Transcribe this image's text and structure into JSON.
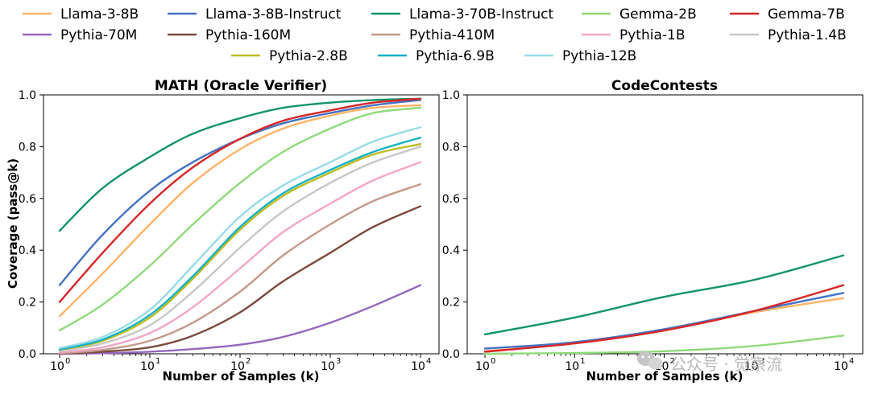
{
  "chart_data": [
    {
      "type": "line",
      "title": "MATH (Oracle Verifier)",
      "xlabel": "Number of Samples (k)",
      "ylabel": "Coverage (pass@k)",
      "xscale": "log",
      "xlim": [
        1,
        10000
      ],
      "ylim": [
        0,
        1.0
      ],
      "x": [
        1,
        3,
        10,
        30,
        100,
        300,
        1000,
        3000,
        10000
      ],
      "xtick_labels": [
        "10",
        "10",
        "10",
        "10",
        "10"
      ],
      "xtick_exponents": [
        "0",
        "1",
        "2",
        "3",
        "4"
      ],
      "ytick_labels": [
        "0.0",
        "0.2",
        "0.4",
        "0.6",
        "0.8",
        "1.0"
      ],
      "series": [
        {
          "name": "Llama-3-8B",
          "values": [
            0.145,
            0.31,
            0.5,
            0.66,
            0.79,
            0.87,
            0.92,
            0.95,
            0.96
          ]
        },
        {
          "name": "Llama-3-8B-Instruct",
          "values": [
            0.265,
            0.46,
            0.63,
            0.74,
            0.83,
            0.89,
            0.93,
            0.96,
            0.98
          ]
        },
        {
          "name": "Llama-3-70B-Instruct",
          "values": [
            0.475,
            0.64,
            0.76,
            0.85,
            0.91,
            0.95,
            0.97,
            0.98,
            0.985
          ]
        },
        {
          "name": "Gemma-2B",
          "values": [
            0.09,
            0.19,
            0.34,
            0.5,
            0.66,
            0.78,
            0.87,
            0.93,
            0.95
          ]
        },
        {
          "name": "Gemma-7B",
          "values": [
            0.2,
            0.39,
            0.58,
            0.72,
            0.83,
            0.9,
            0.94,
            0.97,
            0.985
          ]
        },
        {
          "name": "Pythia-70M",
          "values": [
            0.0,
            0.002,
            0.008,
            0.018,
            0.035,
            0.065,
            0.12,
            0.185,
            0.265
          ]
        },
        {
          "name": "Pythia-160M",
          "values": [
            0.0,
            0.008,
            0.025,
            0.07,
            0.16,
            0.28,
            0.39,
            0.49,
            0.57
          ]
        },
        {
          "name": "Pythia-410M",
          "values": [
            0.002,
            0.015,
            0.05,
            0.12,
            0.24,
            0.38,
            0.5,
            0.59,
            0.655
          ]
        },
        {
          "name": "Pythia-1B",
          "values": [
            0.005,
            0.025,
            0.08,
            0.18,
            0.33,
            0.47,
            0.58,
            0.67,
            0.74
          ]
        },
        {
          "name": "Pythia-1.4B",
          "values": [
            0.01,
            0.04,
            0.11,
            0.24,
            0.41,
            0.55,
            0.66,
            0.74,
            0.8
          ]
        },
        {
          "name": "Pythia-2.8B",
          "values": [
            0.015,
            0.05,
            0.14,
            0.29,
            0.48,
            0.61,
            0.7,
            0.77,
            0.81
          ]
        },
        {
          "name": "Pythia-6.9B",
          "values": [
            0.017,
            0.055,
            0.15,
            0.3,
            0.49,
            0.62,
            0.71,
            0.78,
            0.835
          ]
        },
        {
          "name": "Pythia-12B",
          "values": [
            0.022,
            0.065,
            0.17,
            0.34,
            0.53,
            0.65,
            0.74,
            0.82,
            0.875
          ]
        }
      ]
    },
    {
      "type": "line",
      "title": "CodeContests",
      "xlabel": "Number of Samples (k)",
      "ylabel": "",
      "xscale": "log",
      "xlim": [
        1,
        10000
      ],
      "ylim": [
        0,
        1.0
      ],
      "x": [
        1,
        10,
        100,
        1000,
        10000
      ],
      "xtick_labels": [
        "10",
        "10",
        "10",
        "10",
        "10"
      ],
      "xtick_exponents": [
        "0",
        "1",
        "2",
        "3",
        "4"
      ],
      "ytick_labels": [
        "0.0",
        "0.2",
        "0.4",
        "0.6",
        "0.8",
        "1.0"
      ],
      "series": [
        {
          "name": "Llama-3-8B",
          "values": [
            0.01,
            0.04,
            0.09,
            0.16,
            0.215
          ]
        },
        {
          "name": "Llama-3-8B-Instruct",
          "values": [
            0.02,
            0.045,
            0.095,
            0.165,
            0.235
          ]
        },
        {
          "name": "Llama-3-70B-Instruct",
          "values": [
            0.075,
            0.14,
            0.22,
            0.285,
            0.38
          ]
        },
        {
          "name": "Gemma-2B",
          "values": [
            0.0,
            0.003,
            0.01,
            0.03,
            0.07
          ]
        },
        {
          "name": "Gemma-7B",
          "values": [
            0.008,
            0.04,
            0.09,
            0.165,
            0.265
          ]
        }
      ]
    }
  ],
  "legend": {
    "placement": "top-center",
    "entries": [
      {
        "name": "Llama-3-8B",
        "color": "#ffb366"
      },
      {
        "name": "Llama-3-8B-Instruct",
        "color": "#4472c4"
      },
      {
        "name": "Llama-3-70B-Instruct",
        "color": "#149466"
      },
      {
        "name": "Gemma-2B",
        "color": "#8fda7a"
      },
      {
        "name": "Gemma-7B",
        "color": "#d62728"
      },
      {
        "name": "Pythia-70M",
        "color": "#9467bd"
      },
      {
        "name": "Pythia-160M",
        "color": "#7b4a3c"
      },
      {
        "name": "Pythia-410M",
        "color": "#c4998a"
      },
      {
        "name": "Pythia-1B",
        "color": "#f2a6c8"
      },
      {
        "name": "Pythia-1.4B",
        "color": "#c7c7c7"
      },
      {
        "name": "Pythia-2.8B",
        "color": "#bcbd22"
      },
      {
        "name": "Pythia-6.9B",
        "color": "#17b0c8"
      },
      {
        "name": "Pythia-12B",
        "color": "#96dbe6"
      }
    ]
  },
  "watermark": {
    "text": "公众号 · 觉察流",
    "icon": "wechat-icon"
  }
}
